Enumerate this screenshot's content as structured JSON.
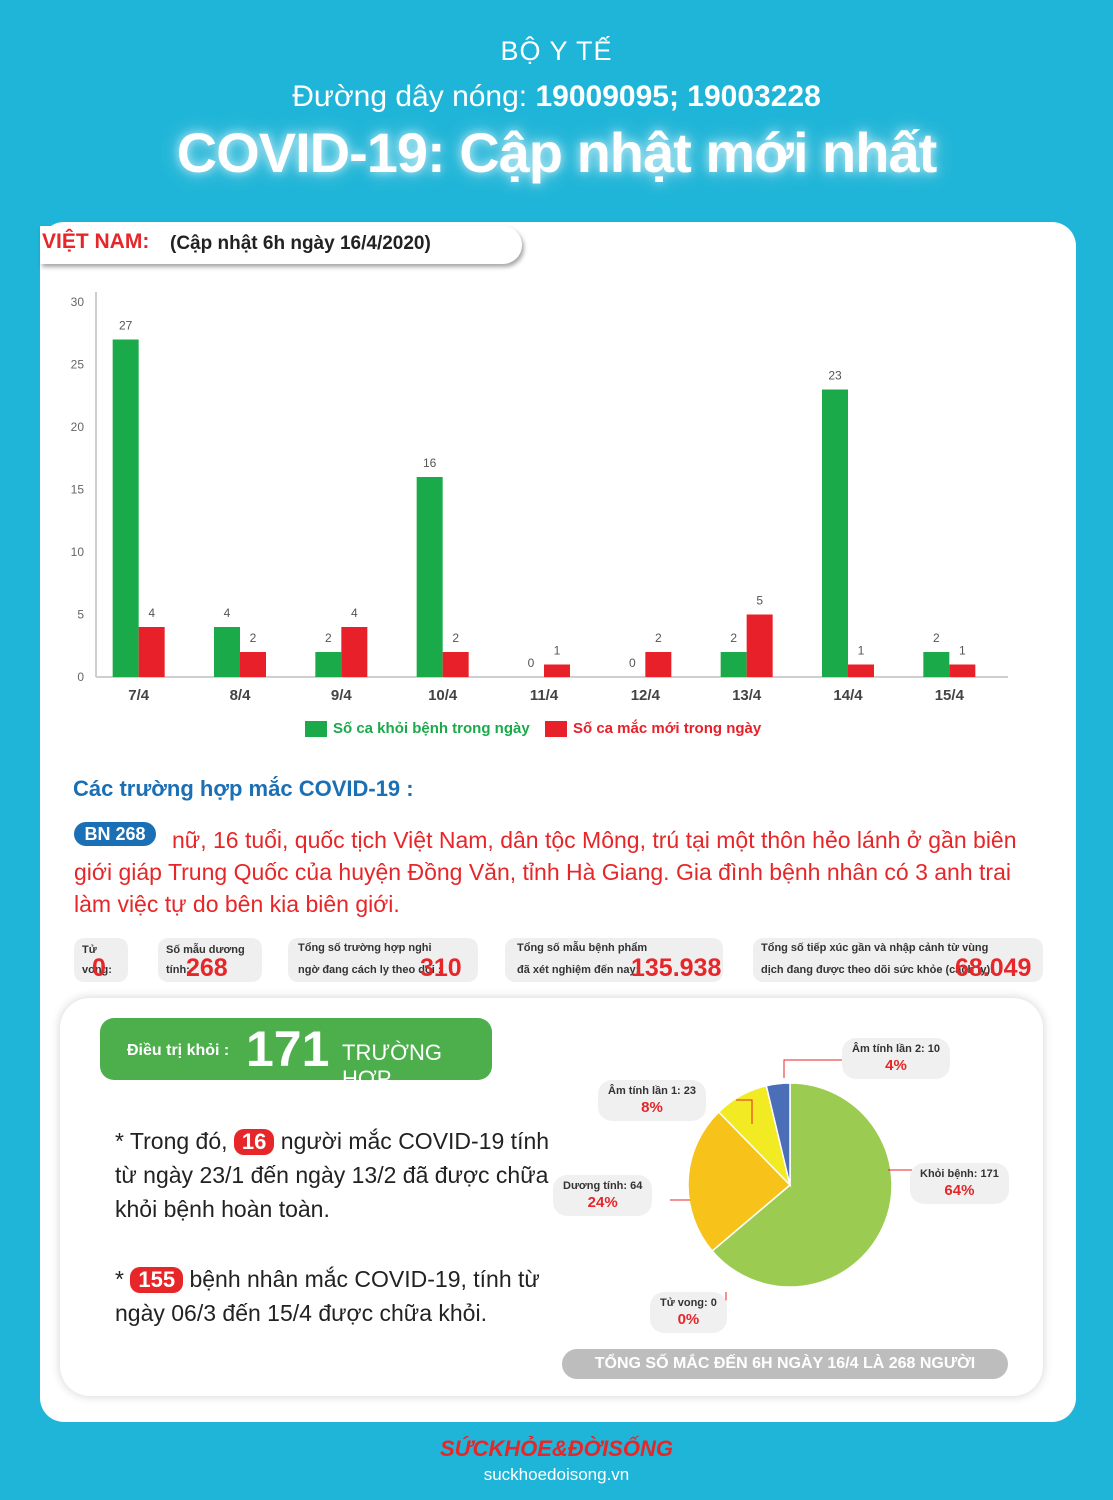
{
  "header": {
    "org": "BỘ Y TẾ",
    "hotline_label": "Đường dây nóng:",
    "hotline_numbers": "19009095; 19003228",
    "title": "COVID-19: Cập nhật mới nhất"
  },
  "vietnam": {
    "label": "VIỆT NAM:",
    "update": "(Cập nhật 6h ngày 16/4/2020)"
  },
  "chart_data": [
    {
      "type": "bar",
      "categories": [
        "7/4",
        "8/4",
        "9/4",
        "10/4",
        "11/4",
        "12/4",
        "13/4",
        "14/4",
        "15/4"
      ],
      "series": [
        {
          "name": "Số ca khỏi bệnh trong ngày",
          "values": [
            27,
            4,
            2,
            16,
            0,
            0,
            2,
            23,
            2
          ],
          "color": "#1aaa4a"
        },
        {
          "name": "Số ca mắc mới  trong ngày",
          "values": [
            4,
            2,
            4,
            2,
            1,
            2,
            5,
            1,
            1
          ],
          "color": "#e8202a"
        }
      ],
      "ylim": [
        0,
        30
      ],
      "yticks": [
        0,
        5,
        10,
        15,
        20,
        25,
        30
      ],
      "legend_position": "bottom",
      "grid": false
    },
    {
      "type": "pie",
      "slices": [
        {
          "label": "Khỏi bệnh: 171",
          "value": 171,
          "pct": "64%",
          "color": "#9bcb50"
        },
        {
          "label": "Dương tính: 64",
          "value": 64,
          "pct": "24%",
          "color": "#f7c21a"
        },
        {
          "label": "Âm tính lần 1: 23",
          "value": 23,
          "pct": "8%",
          "color": "#f2ea22"
        },
        {
          "label": "Âm tính lần 2: 10",
          "value": 10,
          "pct": "4%",
          "color": "#4a6fb8"
        },
        {
          "label": "Tử vong: 0",
          "value": 0,
          "pct": "0%",
          "color": "#999999"
        }
      ]
    }
  ],
  "cases": {
    "title": "Các trường hợp mắc COVID-19 :",
    "patient_id": "BN 268",
    "patient_text": "nữ, 16 tuổi, quốc tịch Việt Nam, dân tộc Mông, trú tại một thôn hẻo lánh ở gần biên giới giáp Trung Quốc của huyện Đồng Văn, tỉnh Hà Giang. Gia đình bệnh nhân có 3 anh trai làm việc tự do bên kia biên giới."
  },
  "stats": {
    "deaths_label": "Tử vong:",
    "deaths": "0",
    "positive_label": "Số mẫu dương tính:",
    "positive": "268",
    "suspected_label_1": "Tổng số trường hợp nghi",
    "suspected_label_2": "ngờ đang cách ly theo dõi :",
    "suspected": "310",
    "tested_label_1": "Tổng số mẫu bệnh phẩm",
    "tested_label_2": "đã xét nghiệm đến nay:",
    "tested": "135.938",
    "contacts_label_1": "Tổng số tiếp xúc gần và nhập cảnh từ vùng",
    "contacts_label_2": "dịch đang được theo dõi sức khỏe (cách ly):",
    "contacts": "68.049"
  },
  "recovered": {
    "label": "Điều trị khỏi :",
    "number": "171",
    "unit": "TRƯỜNG HỢP",
    "note1_prefix": "* Trong đó,",
    "note1_num": "16",
    "note1_text_1": "người mắc COVID-19 tính",
    "note1_text_2": "từ ngày 23/1 đến ngày 13/2 đã được chữa",
    "note1_text_3": "khỏi bệnh hoàn toàn.",
    "note2_prefix": "*",
    "note2_num": "155",
    "note2_text_1": "bệnh nhân  mắc COVID-19, tính từ",
    "note2_text_2": "ngày 06/3 đến 15/4 được chữa khỏi.",
    "total": "TỔNG SỐ MẮC ĐẾN 6H NGÀY 16/4 LÀ 268 NGƯỜI"
  },
  "footer": {
    "logo": "SỨCKHỎE&ĐỜISỐNG",
    "url": "suckhoedoisong.vn"
  }
}
